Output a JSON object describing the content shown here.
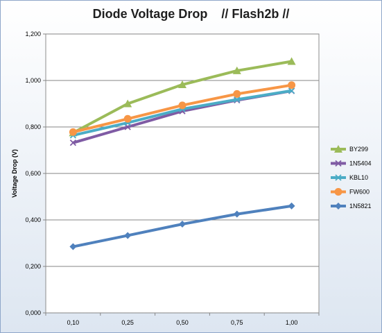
{
  "chart_data": {
    "type": "line",
    "title": "Diode Voltage Drop    // Flash2b //",
    "xlabel": "",
    "ylabel": "Voltage Drop (V)",
    "categories": [
      "0,10",
      "0,25",
      "0,50",
      "0,75",
      "1,00"
    ],
    "ylim": [
      0,
      1.2
    ],
    "yticks": [
      "0,000",
      "0,200",
      "0,400",
      "0,600",
      "0,800",
      "1,000",
      "1,200"
    ],
    "grid": true,
    "legend_position": "right",
    "series": [
      {
        "name": "BY299",
        "color": "#9bbb59",
        "marker": "triangle",
        "values": [
          0.775,
          0.9,
          0.982,
          1.042,
          1.082
        ]
      },
      {
        "name": "1N5404",
        "color": "#7f5ba4",
        "marker": "x",
        "values": [
          0.732,
          0.8,
          0.868,
          0.915,
          0.955
        ]
      },
      {
        "name": "KBL10",
        "color": "#4bacc6",
        "marker": "x",
        "values": [
          0.764,
          0.818,
          0.877,
          0.918,
          0.956
        ]
      },
      {
        "name": "FW600",
        "color": "#f79646",
        "marker": "circle",
        "values": [
          0.778,
          0.835,
          0.893,
          0.942,
          0.98
        ]
      },
      {
        "name": "1N5821",
        "color": "#4f81bd",
        "marker": "diamond",
        "values": [
          0.285,
          0.333,
          0.382,
          0.425,
          0.46
        ]
      }
    ]
  }
}
